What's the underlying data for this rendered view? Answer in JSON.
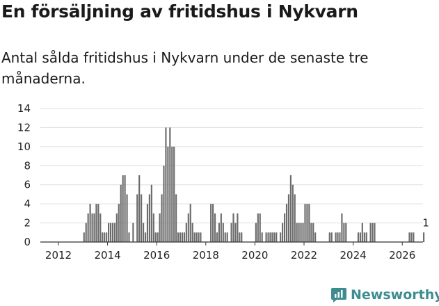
{
  "header": {
    "title": "En försäljning av fritidshus i Nykvarn",
    "subtitle": "Antal sålda fritidshus i Nykvarn under de senaste tre månaderna."
  },
  "brand": {
    "name": "Newsworthy",
    "color": "#3d8d90",
    "icon": "newsworthy-logo-icon"
  },
  "colors": {
    "bar": "#6b6b6b",
    "highlight": "#3aa39b",
    "grid": "#dddddd",
    "axis": "#333333"
  },
  "chart_data": {
    "type": "bar",
    "x_unit": "month",
    "ylim": [
      0,
      14
    ],
    "yticks": [
      0,
      2,
      4,
      6,
      8,
      10,
      12,
      14
    ],
    "xticks": [
      "2012",
      "2014",
      "2016",
      "2018",
      "2020",
      "2022",
      "2024",
      "2026"
    ],
    "grid": true,
    "values": [
      0,
      0,
      0,
      0,
      0,
      0,
      0,
      0,
      0,
      0,
      0,
      0,
      1,
      2,
      3,
      4,
      3,
      3,
      4,
      4,
      3,
      1,
      1,
      1,
      2,
      2,
      2,
      2,
      3,
      4,
      6,
      7,
      7,
      5,
      1,
      0,
      2,
      0,
      5,
      7,
      5,
      2,
      1,
      4,
      5,
      6,
      3,
      1,
      1,
      3,
      5,
      8,
      12,
      10,
      12,
      10,
      10,
      5,
      1,
      1,
      1,
      1,
      2,
      3,
      4,
      2,
      1,
      1,
      1,
      1,
      0,
      0,
      0,
      0,
      4,
      4,
      3,
      1,
      2,
      3,
      2,
      1,
      1,
      0,
      2,
      3,
      2,
      3,
      1,
      1,
      0,
      0,
      0,
      0,
      0,
      0,
      2,
      3,
      3,
      1,
      0,
      1,
      1,
      1,
      1,
      1,
      1,
      0,
      1,
      2,
      3,
      4,
      5,
      7,
      6,
      5,
      2,
      2,
      2,
      2,
      4,
      4,
      4,
      2,
      2,
      1,
      0,
      0,
      0,
      0,
      0,
      0,
      1,
      1,
      0,
      1,
      1,
      1,
      3,
      2,
      2,
      0,
      0,
      0,
      0,
      0,
      1,
      1,
      2,
      1,
      1,
      0,
      2,
      2,
      2,
      0,
      0,
      0,
      0,
      0,
      0,
      0,
      0,
      0,
      0,
      0,
      0,
      0,
      0,
      0,
      0,
      1,
      1,
      1,
      0,
      0,
      0,
      0,
      1,
      0
    ],
    "highlight": {
      "label": "1",
      "value": 1
    }
  }
}
